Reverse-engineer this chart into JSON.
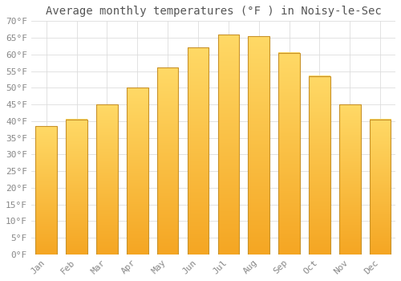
{
  "title": "Average monthly temperatures (°F ) in Noisy-le-Sec",
  "months": [
    "Jan",
    "Feb",
    "Mar",
    "Apr",
    "May",
    "Jun",
    "Jul",
    "Aug",
    "Sep",
    "Oct",
    "Nov",
    "Dec"
  ],
  "values": [
    38.5,
    40.5,
    45.0,
    50.0,
    56.0,
    62.0,
    66.0,
    65.5,
    60.5,
    53.5,
    45.0,
    40.5
  ],
  "bar_color_bottom": "#F5A623",
  "bar_color_top": "#FFD966",
  "bar_border_color": "#C8922A",
  "background_color": "#FFFFFF",
  "grid_color": "#DDDDDD",
  "title_color": "#555555",
  "tick_color": "#888888",
  "ylim": [
    0,
    70
  ],
  "yticks": [
    0,
    5,
    10,
    15,
    20,
    25,
    30,
    35,
    40,
    45,
    50,
    55,
    60,
    65,
    70
  ],
  "title_fontsize": 10,
  "tick_fontsize": 8,
  "font_family": "monospace",
  "bar_width": 0.7,
  "figsize": [
    5.0,
    3.5
  ],
  "dpi": 100
}
